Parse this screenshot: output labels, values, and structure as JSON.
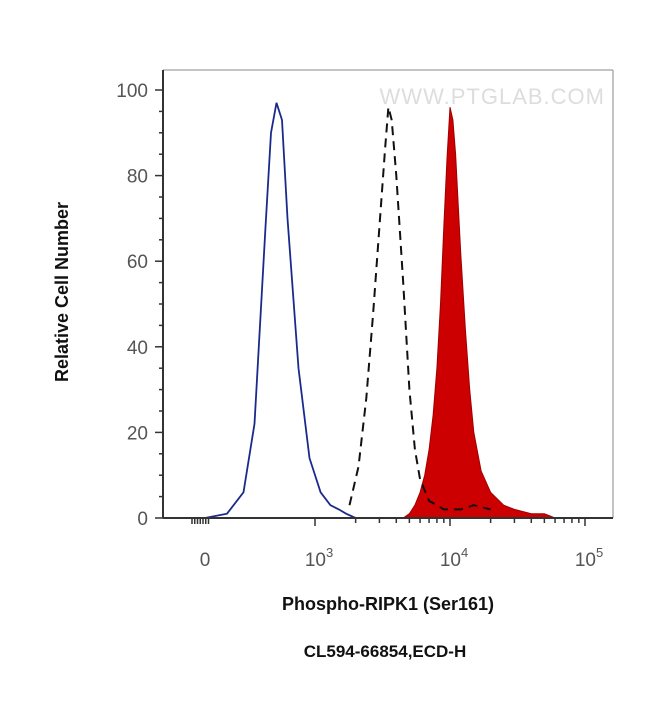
{
  "chart_data": {
    "type": "area",
    "watermark": "WWW.PTGLAB.COM",
    "xlabel": "Phospho-RIPK1 (Ser161)",
    "xlabel2": "CL594-66854,ECD-H",
    "ylabel": "Relative Cell Number",
    "ylim": [
      0,
      100
    ],
    "yticks": [
      "0",
      "20",
      "40",
      "60",
      "80",
      "100"
    ],
    "xscale": "log",
    "xticks": [
      {
        "base": "0",
        "exp": ""
      },
      {
        "base": "10",
        "exp": "3"
      },
      {
        "base": "10",
        "exp": "4"
      },
      {
        "base": "10",
        "exp": "5"
      }
    ],
    "grid": false,
    "series": [
      {
        "style": "blue-outline",
        "color": "#1a2a8c",
        "x": [
          -200,
          0,
          200,
          350,
          450,
          550,
          600,
          650,
          700,
          750,
          850,
          950,
          1100,
          1300,
          1500,
          1700,
          2000
        ],
        "y": [
          0,
          0,
          1,
          6,
          22,
          68,
          90,
          97,
          93,
          70,
          35,
          14,
          6,
          3,
          2,
          1,
          0
        ]
      },
      {
        "style": "black-dashed",
        "color": "#111111",
        "x": [
          1800,
          2100,
          2400,
          2700,
          3000,
          3300,
          3500,
          3700,
          4000,
          4500,
          5000,
          5500,
          6000,
          7000,
          8000,
          9000,
          10000,
          12000,
          15000,
          20000
        ],
        "y": [
          3,
          12,
          28,
          48,
          68,
          86,
          96,
          93,
          80,
          55,
          30,
          16,
          9,
          4,
          3,
          2,
          2,
          2,
          3,
          2
        ]
      },
      {
        "style": "red-filled",
        "color": "#cc0000",
        "x": [
          4500,
          5000,
          5500,
          6000,
          6500,
          7000,
          7500,
          8000,
          8500,
          9000,
          9500,
          10000,
          10500,
          11000,
          12000,
          13000,
          14000,
          15000,
          17000,
          20000,
          25000,
          30000,
          40000,
          50000,
          60000
        ],
        "y": [
          0,
          1,
          3,
          6,
          10,
          16,
          24,
          35,
          50,
          68,
          84,
          96,
          93,
          85,
          62,
          44,
          30,
          20,
          11,
          6,
          3,
          2,
          1,
          1,
          0
        ]
      }
    ]
  }
}
